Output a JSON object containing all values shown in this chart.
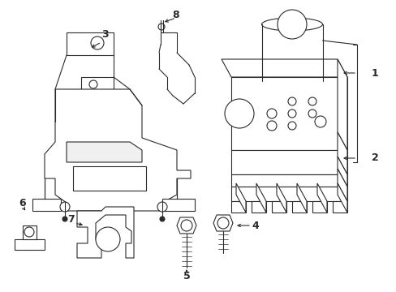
{
  "bg": "#ffffff",
  "lc": "#2a2a2a",
  "lw": 0.8,
  "figsize": [
    4.89,
    3.6
  ],
  "dpi": 100
}
